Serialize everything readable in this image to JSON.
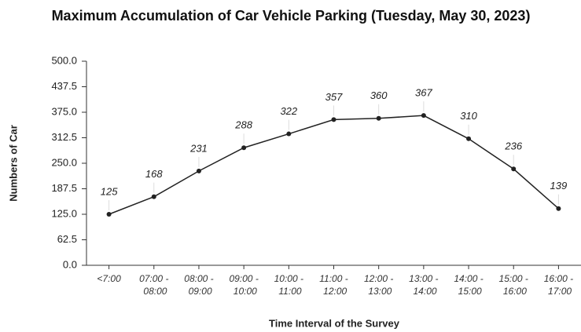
{
  "chart_data": {
    "type": "line",
    "title": "Maximum Accumulation of Car Vehicle Parking (Tuesday, May 30, 2023)",
    "x_label": "Time Interval of the Survey",
    "y_label": "Numbers of Car",
    "categories": [
      "<7:00",
      "07:00 - 08:00",
      "08:00 - 09:00",
      "09:00 - 10:00",
      "10:00 - 11:00",
      "11:00 - 12:00",
      "12:00 - 13:00",
      "13:00 - 14:00",
      "14:00 - 15:00",
      "15:00 - 16:00",
      "16:00 - 17:00"
    ],
    "values": [
      125,
      168,
      231,
      288,
      322,
      357,
      360,
      367,
      310,
      236,
      139
    ],
    "color": "#222222",
    "ylim": [
      0,
      500
    ],
    "yticks": [
      {
        "value": 0,
        "label": "0.0"
      },
      62.5,
      {
        "value": 125,
        "label": "125.0"
      },
      187.5,
      {
        "value": 250,
        "label": "250.0"
      },
      312.5,
      {
        "value": 375,
        "label": "375.0"
      },
      437.5,
      {
        "value": 500,
        "label": "500.0"
      }
    ],
    "grid": false
  }
}
